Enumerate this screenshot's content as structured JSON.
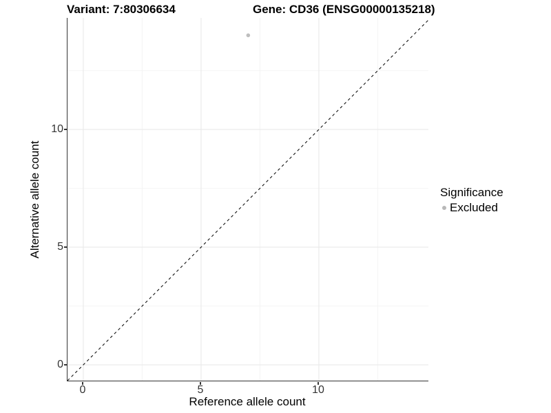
{
  "header": {
    "variant_title": "Variant: 7:80306634",
    "gene_title": "Gene: CD36 (ENSG00000135218)"
  },
  "axes": {
    "x_label": "Reference allele count",
    "y_label": "Alternative allele count"
  },
  "legend": {
    "title": "Significance",
    "items": [
      {
        "label": "Excluded",
        "marker": "dot-icon",
        "color": "#b8b8b8"
      }
    ]
  },
  "chart_data": {
    "type": "scatter",
    "title": "Variant: 7:80306634 | Gene: CD36 (ENSG00000135218)",
    "xlabel": "Reference allele count",
    "ylabel": "Alternative allele count",
    "xlim": [
      -0.67,
      14.65
    ],
    "ylim": [
      -0.67,
      14.74
    ],
    "x_ticks": [
      0,
      5,
      10
    ],
    "y_ticks": [
      0,
      5,
      10
    ],
    "x_minor_ticks": [
      2.5,
      7.5,
      12.5
    ],
    "y_minor_ticks": [
      2.5,
      7.5,
      12.5
    ],
    "grid": "major and minor gridlines on, white background",
    "legend_position": "right",
    "series": [
      {
        "name": "Excluded",
        "color": "#bebebe",
        "points": [
          {
            "x": 7,
            "y": 14
          }
        ]
      }
    ],
    "reference_line": {
      "equation": "y = x",
      "style": "dashed",
      "color": "#111111"
    }
  },
  "colors": {
    "background": "#ffffff",
    "axis_line": "#333333",
    "grid_major": "#e9e9e9",
    "grid_minor": "#f4f4f4",
    "point": "#bebebe",
    "text": "#000000"
  }
}
